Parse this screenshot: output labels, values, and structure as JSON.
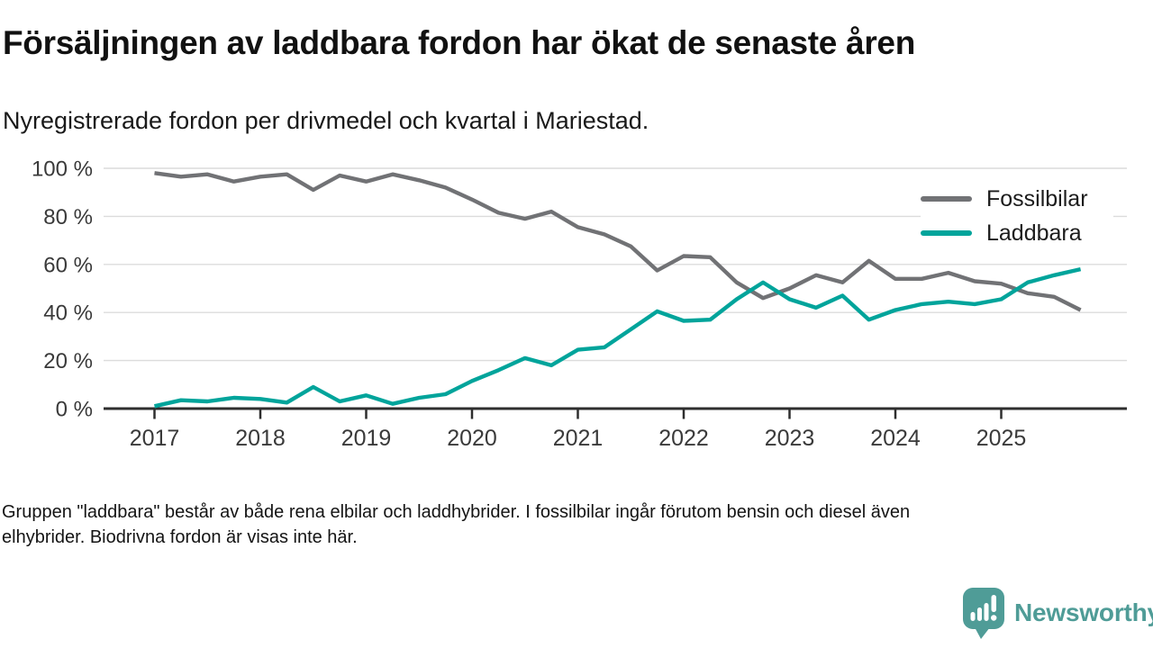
{
  "header": {
    "title": "Försäljningen av laddbara fordon har ökat de senaste åren",
    "subtitle": "Nyregistrerade fordon per drivmedel och kvartal i Mariestad."
  },
  "chart_data": {
    "type": "line",
    "unit": "%",
    "grid": "horizontal",
    "legend_position": "top-right",
    "ylim": [
      0,
      100
    ],
    "yticks": [
      0,
      20,
      40,
      60,
      80,
      100
    ],
    "ytick_labels": [
      "0 %",
      "20 %",
      "40 %",
      "60 %",
      "80 %",
      "100 %"
    ],
    "xtick_labels": [
      "2017",
      "2018",
      "2019",
      "2020",
      "2021",
      "2022",
      "2023",
      "2024",
      "2025"
    ],
    "x": [
      "2017-Q1",
      "2017-Q2",
      "2017-Q3",
      "2017-Q4",
      "2018-Q1",
      "2018-Q2",
      "2018-Q3",
      "2018-Q4",
      "2019-Q1",
      "2019-Q2",
      "2019-Q3",
      "2019-Q4",
      "2020-Q1",
      "2020-Q2",
      "2020-Q3",
      "2020-Q4",
      "2021-Q1",
      "2021-Q2",
      "2021-Q3",
      "2021-Q4",
      "2022-Q1",
      "2022-Q2",
      "2022-Q3",
      "2022-Q4",
      "2023-Q1",
      "2023-Q2",
      "2023-Q3",
      "2023-Q4",
      "2024-Q1",
      "2024-Q2",
      "2024-Q3",
      "2024-Q4",
      "2025-Q1",
      "2025-Q2",
      "2025-Q3",
      "2025-Q4"
    ],
    "series": [
      {
        "name": "Fossilbilar",
        "color": "#717275",
        "values": [
          98,
          96.5,
          97.5,
          94.5,
          96.5,
          97.5,
          91,
          97,
          94.5,
          97.5,
          95,
          92,
          87,
          81.5,
          79,
          82,
          75.5,
          72.5,
          67.5,
          57.5,
          63.5,
          63,
          52.5,
          46,
          50,
          55.5,
          52.5,
          61.5,
          54,
          54,
          56.5,
          53,
          52,
          48,
          46.5,
          41
        ]
      },
      {
        "name": "Laddbara",
        "color": "#00a49b",
        "values": [
          1,
          3.5,
          3,
          4.5,
          4,
          2.5,
          9,
          3,
          5.5,
          2,
          4.5,
          6,
          11.5,
          16,
          21,
          18,
          24.5,
          25.5,
          33,
          40.5,
          36.5,
          37,
          45.5,
          52.5,
          45.5,
          42,
          47,
          37,
          41,
          43.5,
          44.5,
          43.5,
          45.5,
          52.5,
          55.5,
          58
        ]
      }
    ]
  },
  "footer": {
    "lines": [
      "Gruppen \"laddbara\" består av både rena elbilar och laddhybrider. I fossilbilar ingår förutom bensin och diesel även",
      "elhybrider. Biodrivna fordon är visas inte här."
    ]
  },
  "branding": {
    "name": "Newsworthy",
    "color": "#4f9c97",
    "icon": "newsworthy-bubble-chart-icon"
  }
}
